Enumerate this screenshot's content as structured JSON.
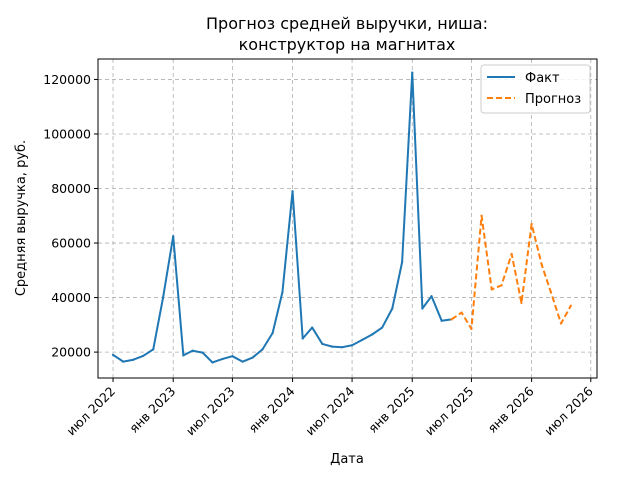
{
  "chart_data": {
    "type": "line",
    "title": [
      "Прогноз средней выручки, ниша:",
      "конструктор на магнитах"
    ],
    "xlabel": "Дата",
    "ylabel": "Средняя выручка, руб.",
    "xlim": [
      "2022-05-16",
      "2026-07-20"
    ],
    "ylim": [
      10500,
      127500
    ],
    "x_ticks": [
      {
        "date": "2022-07-01",
        "label": "июл 2022"
      },
      {
        "date": "2023-01-01",
        "label": "янв 2023"
      },
      {
        "date": "2023-07-01",
        "label": "июл 2023"
      },
      {
        "date": "2024-01-01",
        "label": "янв 2024"
      },
      {
        "date": "2024-07-01",
        "label": "июл 2024"
      },
      {
        "date": "2025-01-01",
        "label": "янв 2025"
      },
      {
        "date": "2025-07-01",
        "label": "июл 2025"
      },
      {
        "date": "2026-01-01",
        "label": "янв 2026"
      },
      {
        "date": "2026-07-01",
        "label": "июл 2026"
      }
    ],
    "y_ticks": [
      20000,
      40000,
      60000,
      80000,
      100000,
      120000
    ],
    "grid": true,
    "legend_position": "top-right",
    "series": [
      {
        "name": "Факт",
        "color": "#1f77b4",
        "style": "solid",
        "points": [
          [
            "2022-07-01",
            19000
          ],
          [
            "2022-08-01",
            16500
          ],
          [
            "2022-09-01",
            17200
          ],
          [
            "2022-10-01",
            18600
          ],
          [
            "2022-11-01",
            21000
          ],
          [
            "2022-12-01",
            40000
          ],
          [
            "2023-01-01",
            62500
          ],
          [
            "2023-02-01",
            18800
          ],
          [
            "2023-03-01",
            20500
          ],
          [
            "2023-04-01",
            19800
          ],
          [
            "2023-05-01",
            16200
          ],
          [
            "2023-06-01",
            17500
          ],
          [
            "2023-07-01",
            18500
          ],
          [
            "2023-08-01",
            16500
          ],
          [
            "2023-09-01",
            18000
          ],
          [
            "2023-10-01",
            21000
          ],
          [
            "2023-11-01",
            27000
          ],
          [
            "2023-12-01",
            42000
          ],
          [
            "2024-01-01",
            79000
          ],
          [
            "2024-02-01",
            25000
          ],
          [
            "2024-03-01",
            29000
          ],
          [
            "2024-04-01",
            23000
          ],
          [
            "2024-05-01",
            22000
          ],
          [
            "2024-06-01",
            21800
          ],
          [
            "2024-07-01",
            22500
          ],
          [
            "2024-08-01",
            24500
          ],
          [
            "2024-09-01",
            26500
          ],
          [
            "2024-10-01",
            29000
          ],
          [
            "2024-11-01",
            36000
          ],
          [
            "2024-12-01",
            53000
          ],
          [
            "2025-01-01",
            122500
          ],
          [
            "2025-02-01",
            36000
          ],
          [
            "2025-03-01",
            40500
          ],
          [
            "2025-04-01",
            31500
          ],
          [
            "2025-05-01",
            32000
          ]
        ]
      },
      {
        "name": "Прогноз",
        "color": "#ff7f0e",
        "style": "dashed",
        "points": [
          [
            "2025-05-01",
            32000
          ],
          [
            "2025-06-01",
            34500
          ],
          [
            "2025-07-01",
            28500
          ],
          [
            "2025-08-01",
            70000
          ],
          [
            "2025-09-01",
            43000
          ],
          [
            "2025-10-01",
            44500
          ],
          [
            "2025-11-01",
            56000
          ],
          [
            "2025-12-01",
            38000
          ],
          [
            "2026-01-01",
            67000
          ],
          [
            "2026-02-01",
            52000
          ],
          [
            "2026-03-01",
            42000
          ],
          [
            "2026-04-01",
            30500
          ],
          [
            "2026-05-01",
            37000
          ]
        ]
      }
    ]
  }
}
